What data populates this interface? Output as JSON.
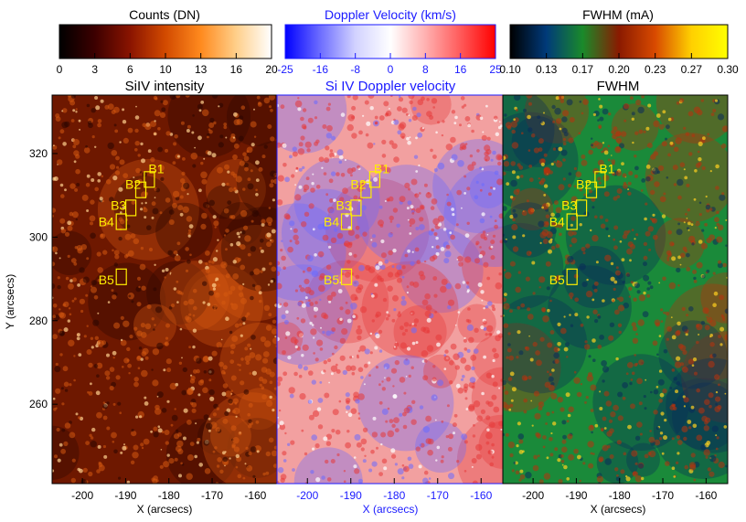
{
  "chart_data": {
    "type": "heatmap",
    "ylabel": "Y (arcsecs)",
    "y_ticks": [
      260,
      280,
      300,
      320
    ],
    "ylim": [
      241,
      334
    ],
    "panels": [
      {
        "title": "SiIV intensity",
        "xlabel": "X (arcsecs)",
        "x_ticks": [
          -200,
          -190,
          -180,
          -170,
          -160
        ],
        "xlim": [
          -207,
          -155
        ],
        "colorbar": {
          "label": "Counts (DN)",
          "ticks": [
            "0",
            "3",
            "6",
            "10",
            "13",
            "16",
            "20"
          ],
          "stops": [
            "#000000",
            "#3c0000",
            "#8a1400",
            "#d24a00",
            "#ff8a1e",
            "#ffcf8a",
            "#ffffff"
          ]
        },
        "colors": {
          "base": "#6e1800",
          "mid": "#d65a10",
          "hi": "#ffd28e",
          "dark": "#2a0600"
        },
        "label_color": "#000000"
      },
      {
        "title": "Si IV Doppler velocity",
        "xlabel": "X (arcsecs)",
        "x_ticks": [
          -200,
          -190,
          -180,
          -170,
          -160
        ],
        "xlim": [
          -207,
          -155
        ],
        "colorbar": {
          "label": "Doppler Velocity (km/s)",
          "ticks": [
            "-25",
            "-16",
            "-8",
            "0",
            "8",
            "16",
            "25"
          ],
          "stops": [
            "#0000ff",
            "#6d6dff",
            "#d2d2ff",
            "#ffffff",
            "#ffb0b0",
            "#ff5a5a",
            "#ff0000"
          ]
        },
        "colors": {
          "base": "#f2a0a0",
          "mid": "#e63838",
          "hi": "#ffffff",
          "dark": "#6a6aff"
        },
        "label_color": "#1a1aff"
      },
      {
        "title": "FWHM",
        "xlabel": "X (arcsecs)",
        "x_ticks": [
          -200,
          -190,
          -180,
          -170,
          -160
        ],
        "xlim": [
          -207,
          -155
        ],
        "colorbar": {
          "label": "FWHM (mA)",
          "ticks": [
            "0.10",
            "0.13",
            "0.17",
            "0.20",
            "0.23",
            "0.27",
            "0.30"
          ],
          "stops": [
            "#000000",
            "#003a7a",
            "#1a8a2a",
            "#8a1a00",
            "#d84a00",
            "#ffd000",
            "#ffff00"
          ]
        },
        "colors": {
          "base": "#1a8a3a",
          "mid": "#b8320c",
          "hi": "#ffd020",
          "dark": "#0a2a5a"
        },
        "label_color": "#000000"
      }
    ],
    "boxes": [
      {
        "label": "B1",
        "x": -184.5,
        "y": 313.8
      },
      {
        "label": "B2",
        "x": -186.5,
        "y": 311.3
      },
      {
        "label": "B3",
        "x": -188.8,
        "y": 307.0
      },
      {
        "label": "B4",
        "x": -191.0,
        "y": 303.7
      },
      {
        "label": "B5",
        "x": -191.0,
        "y": 290.5
      }
    ]
  }
}
